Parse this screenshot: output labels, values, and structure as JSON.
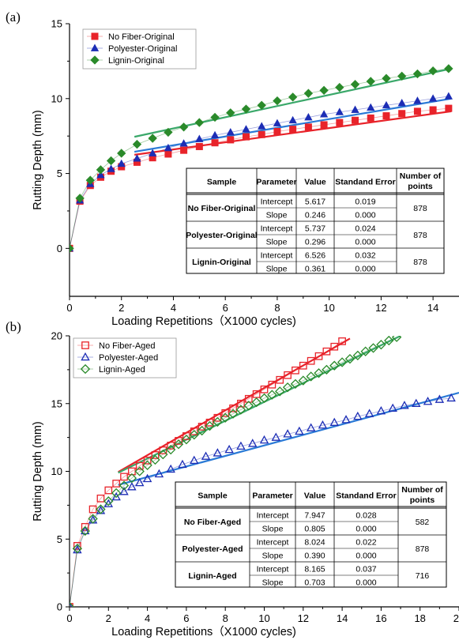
{
  "chart_data": [
    {
      "panel_label": "(a)",
      "type": "scatter",
      "xlabel": "Loading Repetitions（X1000 cycles)",
      "ylabel": "Rutting Depth (mm)",
      "xlim": [
        0,
        15
      ],
      "ylim": [
        -3.2,
        15
      ],
      "xticks": [
        0,
        2,
        4,
        6,
        8,
        10,
        12,
        14
      ],
      "yticks": [
        0,
        5,
        10,
        15
      ],
      "grid": false,
      "legend_position": "top-left",
      "series": [
        {
          "name": "No Fiber-Original",
          "marker": "square-filled",
          "color": "#e8232a",
          "x": [
            0,
            0.4,
            0.8,
            1.2,
            1.6,
            2.0,
            2.6,
            3.2,
            3.8,
            4.4,
            5.0,
            5.6,
            6.2,
            6.8,
            7.4,
            8.0,
            8.6,
            9.2,
            9.8,
            10.4,
            11.0,
            11.6,
            12.2,
            12.8,
            13.4,
            14.0,
            14.6
          ],
          "y": [
            0,
            3.15,
            4.2,
            4.75,
            5.15,
            5.45,
            5.75,
            6.05,
            6.3,
            6.55,
            6.8,
            7.05,
            7.25,
            7.45,
            7.6,
            7.8,
            7.95,
            8.1,
            8.25,
            8.4,
            8.55,
            8.7,
            8.85,
            9.0,
            9.15,
            9.25,
            9.35
          ]
        },
        {
          "name": "Polyester-Original",
          "marker": "triangle-filled",
          "color": "#1c2db5",
          "x": [
            0,
            0.4,
            0.8,
            1.2,
            1.6,
            2.0,
            2.6,
            3.2,
            3.8,
            4.4,
            5.0,
            5.6,
            6.2,
            6.8,
            7.4,
            8.0,
            8.6,
            9.2,
            9.8,
            10.4,
            11.0,
            11.6,
            12.2,
            12.8,
            13.4,
            14.0,
            14.6
          ],
          "y": [
            0,
            3.2,
            4.3,
            4.9,
            5.3,
            5.65,
            6.0,
            6.35,
            6.7,
            7.0,
            7.3,
            7.55,
            7.75,
            7.95,
            8.15,
            8.35,
            8.55,
            8.75,
            8.95,
            9.1,
            9.25,
            9.4,
            9.55,
            9.7,
            9.85,
            10.0,
            10.15
          ]
        },
        {
          "name": "Lignin-Original",
          "marker": "diamond-filled",
          "color": "#2a8a2a",
          "x": [
            0,
            0.4,
            0.8,
            1.2,
            1.6,
            2.0,
            2.6,
            3.2,
            3.8,
            4.4,
            5.0,
            5.6,
            6.2,
            6.8,
            7.4,
            8.0,
            8.6,
            9.2,
            9.8,
            10.4,
            11.0,
            11.6,
            12.2,
            12.8,
            13.4,
            14.0,
            14.6
          ],
          "y": [
            0,
            3.35,
            4.55,
            5.25,
            5.85,
            6.35,
            6.95,
            7.35,
            7.75,
            8.1,
            8.4,
            8.75,
            9.05,
            9.3,
            9.55,
            9.85,
            10.1,
            10.35,
            10.55,
            10.75,
            10.95,
            11.15,
            11.35,
            11.5,
            11.65,
            11.85,
            12.0
          ]
        }
      ],
      "fit_lines": [
        {
          "color": "#e8232a",
          "x": [
            2.5,
            14.7
          ],
          "y": [
            6.25,
            9.15
          ]
        },
        {
          "color": "#2a7ad6",
          "x": [
            2.5,
            14.7
          ],
          "y": [
            6.45,
            10.0
          ]
        },
        {
          "color": "#3aa86a",
          "x": [
            2.5,
            14.7
          ],
          "y": [
            7.45,
            12.0
          ]
        }
      ],
      "table": {
        "headers": [
          "Sample",
          "Parameter",
          "Value",
          "Standand Error",
          "Number of points"
        ],
        "groups": [
          {
            "sample": "No Fiber-Original",
            "points": "878",
            "rows": [
              {
                "parameter": "Intercept",
                "value": "5.617",
                "error": "0.019"
              },
              {
                "parameter": "Slope",
                "value": "0.246",
                "error": "0.000"
              }
            ]
          },
          {
            "sample": "Polyester-Original",
            "points": "878",
            "rows": [
              {
                "parameter": "Intercept",
                "value": "5.737",
                "error": "0.024"
              },
              {
                "parameter": "Slope",
                "value": "0.296",
                "error": "0.000"
              }
            ]
          },
          {
            "sample": "Lignin-Original",
            "points": "878",
            "rows": [
              {
                "parameter": "Intercept",
                "value": "6.526",
                "error": "0.032"
              },
              {
                "parameter": "Slope",
                "value": "0.361",
                "error": "0.000"
              }
            ]
          }
        ]
      }
    },
    {
      "panel_label": "(b)",
      "type": "scatter",
      "xlabel": "Loading Repetitions（X1000 cycles)",
      "ylabel": "Rutting Depth (mm)",
      "xlim": [
        0,
        20
      ],
      "ylim": [
        0,
        20
      ],
      "xticks": [
        0,
        2,
        4,
        6,
        8,
        10,
        12,
        14,
        16,
        18,
        20
      ],
      "yticks": [
        0,
        5,
        10,
        15,
        20
      ],
      "grid": false,
      "legend_position": "top-left",
      "series": [
        {
          "name": "No Fiber-Aged",
          "marker": "square-open",
          "color": "#e8232a",
          "x": [
            0,
            0.4,
            0.8,
            1.2,
            1.6,
            2.0,
            2.4,
            2.8,
            3.2,
            3.6,
            4.0,
            4.4,
            4.8,
            5.2,
            5.6,
            6.0,
            6.4,
            6.8,
            7.2,
            7.6,
            8.0,
            8.4,
            8.8,
            9.2,
            9.6,
            10.0,
            10.4,
            10.8,
            11.2,
            11.6,
            12.0,
            12.4,
            12.8,
            13.2,
            13.6,
            14.0
          ],
          "y": [
            0,
            4.5,
            5.9,
            7.2,
            8.0,
            8.6,
            9.1,
            9.6,
            10.0,
            10.4,
            10.8,
            11.2,
            11.55,
            11.9,
            12.25,
            12.6,
            12.95,
            13.3,
            13.6,
            13.95,
            14.3,
            14.65,
            15.0,
            15.35,
            15.7,
            16.05,
            16.4,
            16.75,
            17.1,
            17.45,
            17.8,
            18.15,
            18.5,
            18.85,
            19.2,
            19.6
          ]
        },
        {
          "name": "Polyester-Aged",
          "marker": "triangle-open",
          "color": "#1c2db5",
          "x": [
            0,
            0.4,
            0.8,
            1.2,
            1.6,
            2.0,
            2.4,
            2.8,
            3.2,
            3.6,
            4.0,
            4.6,
            5.2,
            5.8,
            6.4,
            7.0,
            7.6,
            8.2,
            8.8,
            9.4,
            10.0,
            10.6,
            11.2,
            11.8,
            12.4,
            13.0,
            13.6,
            14.2,
            14.8,
            15.4,
            16.0,
            16.6,
            17.2,
            17.8,
            18.4,
            19.0,
            19.6
          ],
          "y": [
            0,
            4.2,
            5.6,
            6.4,
            7.1,
            7.6,
            8.1,
            8.5,
            8.85,
            9.15,
            9.45,
            9.8,
            10.15,
            10.5,
            10.8,
            11.1,
            11.35,
            11.6,
            11.85,
            12.05,
            12.3,
            12.5,
            12.75,
            12.95,
            13.2,
            13.4,
            13.6,
            13.8,
            14.05,
            14.25,
            14.45,
            14.65,
            14.85,
            15.0,
            15.15,
            15.3,
            15.4
          ]
        },
        {
          "name": "Lignin-Aged",
          "marker": "diamond-open",
          "color": "#2a8a2a",
          "x": [
            0,
            0.4,
            0.8,
            1.2,
            1.6,
            2.0,
            2.4,
            2.8,
            3.2,
            3.6,
            4.0,
            4.4,
            4.8,
            5.2,
            5.6,
            6.0,
            6.4,
            6.8,
            7.2,
            7.6,
            8.0,
            8.4,
            8.8,
            9.2,
            9.6,
            10.0,
            10.4,
            10.8,
            11.2,
            11.6,
            12.0,
            12.4,
            12.8,
            13.2,
            13.6,
            14.0,
            14.4,
            14.8,
            15.2,
            15.6,
            16.0,
            16.4,
            16.8
          ],
          "y": [
            0,
            4.3,
            5.6,
            6.5,
            7.2,
            7.8,
            8.4,
            8.95,
            9.5,
            10.0,
            10.45,
            10.85,
            11.25,
            11.6,
            12.0,
            12.35,
            12.7,
            13.0,
            13.35,
            13.65,
            13.95,
            14.25,
            14.55,
            14.85,
            15.1,
            15.4,
            15.65,
            15.9,
            16.2,
            16.45,
            16.7,
            17.0,
            17.25,
            17.5,
            17.8,
            18.05,
            18.3,
            18.55,
            18.85,
            19.1,
            19.35,
            19.65,
            19.9
          ]
        }
      ],
      "fit_lines": [
        {
          "color": "#e8232a",
          "x": [
            2.5,
            14.4
          ],
          "y": [
            9.95,
            19.8
          ]
        },
        {
          "color": "#2a7ad6",
          "x": [
            2.5,
            20
          ],
          "y": [
            9.0,
            15.8
          ]
        },
        {
          "color": "#3aa86a",
          "x": [
            2.5,
            17.0
          ],
          "y": [
            9.9,
            20.0
          ]
        }
      ],
      "table": {
        "headers": [
          "Sample",
          "Parameter",
          "Value",
          "Standand Error",
          "Number of points"
        ],
        "groups": [
          {
            "sample": "No Fiber-Aged",
            "points": "582",
            "rows": [
              {
                "parameter": "Intercept",
                "value": "7.947",
                "error": "0.028"
              },
              {
                "parameter": "Slope",
                "value": "0.805",
                "error": "0.000"
              }
            ]
          },
          {
            "sample": "Polyester-Aged",
            "points": "878",
            "rows": [
              {
                "parameter": "Intercept",
                "value": "8.024",
                "error": "0.022"
              },
              {
                "parameter": "Slope",
                "value": "0.390",
                "error": "0.000"
              }
            ]
          },
          {
            "sample": "Lignin-Aged",
            "points": "716",
            "rows": [
              {
                "parameter": "Intercept",
                "value": "8.165",
                "error": "0.037"
              },
              {
                "parameter": "Slope",
                "value": "0.703",
                "error": "0.000"
              }
            ]
          }
        ]
      }
    }
  ]
}
